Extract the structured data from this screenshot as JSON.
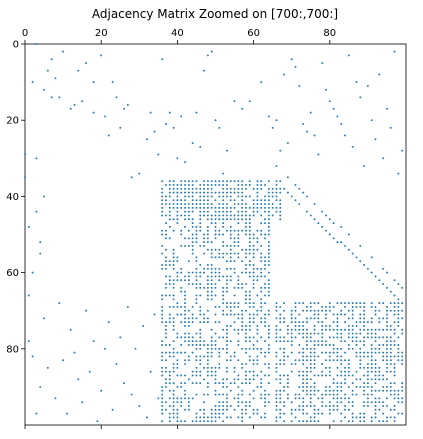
{
  "chart_data": {
    "type": "scatter",
    "title": "Adjacency Matrix Zoomed on [700:,700:]",
    "xlabel": "",
    "ylabel": "",
    "xlim": [
      0,
      100
    ],
    "ylim": [
      0,
      100
    ],
    "y_inverted": true,
    "x_axis_position": "top",
    "grid": false,
    "legend": "none",
    "marker_color": "#1f77b4",
    "x_ticks": [
      0,
      20,
      40,
      60,
      80
    ],
    "y_ticks": [
      0,
      20,
      40,
      60,
      80
    ],
    "x_tick_labels": [
      "0",
      "20",
      "40",
      "60",
      "80"
    ],
    "y_tick_labels": [
      "0",
      "20",
      "40",
      "60",
      "80"
    ],
    "points": [
      [
        2,
        10
      ],
      [
        3,
        0
      ],
      [
        5,
        12
      ],
      [
        6,
        7
      ],
      [
        7,
        4
      ],
      [
        7,
        14
      ],
      [
        8,
        9
      ],
      [
        9,
        14
      ],
      [
        10,
        2
      ],
      [
        12,
        17
      ],
      [
        13,
        16
      ],
      [
        14,
        7
      ],
      [
        15,
        15
      ],
      [
        16,
        5
      ],
      [
        18,
        18
      ],
      [
        18,
        10
      ],
      [
        20,
        3
      ],
      [
        21,
        19
      ],
      [
        22,
        24
      ],
      [
        23,
        10
      ],
      [
        24,
        14
      ],
      [
        25,
        22
      ],
      [
        26,
        17
      ],
      [
        27,
        16
      ],
      [
        28,
        35
      ],
      [
        30,
        34
      ],
      [
        32,
        25
      ],
      [
        33,
        18
      ],
      [
        34,
        23
      ],
      [
        35,
        29
      ],
      [
        36,
        4
      ],
      [
        37,
        21
      ],
      [
        38,
        18
      ],
      [
        39,
        22
      ],
      [
        40,
        30
      ],
      [
        41,
        19
      ],
      [
        42,
        31
      ],
      [
        44,
        26
      ],
      [
        45,
        18
      ],
      [
        46,
        27
      ],
      [
        47,
        7
      ],
      [
        48,
        3
      ],
      [
        49,
        2
      ],
      [
        50,
        20
      ],
      [
        51,
        22
      ],
      [
        52,
        34
      ],
      [
        53,
        28
      ],
      [
        55,
        15
      ],
      [
        57,
        17
      ],
      [
        59,
        15
      ],
      [
        62,
        10
      ],
      [
        64,
        19
      ],
      [
        65,
        22
      ],
      [
        66,
        20
      ],
      [
        67,
        28
      ],
      [
        68,
        8
      ],
      [
        69,
        26
      ],
      [
        70,
        4
      ],
      [
        71,
        6
      ],
      [
        72,
        11
      ],
      [
        73,
        21
      ],
      [
        74,
        23
      ],
      [
        75,
        18
      ],
      [
        76,
        24
      ],
      [
        77,
        29
      ],
      [
        78,
        5
      ],
      [
        79,
        12
      ],
      [
        80,
        15
      ],
      [
        81,
        17
      ],
      [
        82,
        19
      ],
      [
        83,
        21
      ],
      [
        84,
        24
      ],
      [
        85,
        3
      ],
      [
        86,
        27
      ],
      [
        87,
        10
      ],
      [
        88,
        14
      ],
      [
        89,
        32
      ],
      [
        90,
        11
      ],
      [
        91,
        20
      ],
      [
        92,
        25
      ],
      [
        93,
        8
      ],
      [
        94,
        30
      ],
      [
        95,
        17
      ],
      [
        96,
        22
      ],
      [
        97,
        2
      ],
      [
        98,
        34
      ],
      [
        99,
        28
      ],
      [
        1,
        78
      ],
      [
        2,
        82
      ],
      [
        3,
        97
      ],
      [
        4,
        90
      ],
      [
        5,
        72
      ],
      [
        6,
        85
      ],
      [
        8,
        93
      ],
      [
        9,
        68
      ],
      [
        10,
        83
      ],
      [
        11,
        97
      ],
      [
        12,
        75
      ],
      [
        13,
        81
      ],
      [
        14,
        88
      ],
      [
        15,
        94
      ],
      [
        16,
        70
      ],
      [
        17,
        86
      ],
      [
        18,
        78
      ],
      [
        19,
        99
      ],
      [
        20,
        91
      ],
      [
        21,
        80
      ],
      [
        22,
        73
      ],
      [
        23,
        96
      ],
      [
        24,
        84
      ],
      [
        25,
        77
      ],
      [
        26,
        89
      ],
      [
        27,
        69
      ],
      [
        28,
        92
      ],
      [
        29,
        80
      ],
      [
        30,
        95
      ],
      [
        31,
        74
      ],
      [
        32,
        98
      ],
      [
        33,
        86
      ],
      [
        34,
        71
      ],
      [
        35,
        93
      ],
      [
        0,
        29
      ],
      [
        0,
        35
      ],
      [
        1,
        48
      ],
      [
        2,
        60
      ],
      [
        3,
        44
      ],
      [
        4,
        55
      ],
      [
        1,
        66
      ],
      [
        3,
        30
      ],
      [
        4,
        52
      ],
      [
        5,
        40
      ]
    ],
    "dense_blocks": [
      {
        "x": [
          36,
          64
        ],
        "y": [
          36,
          99
        ],
        "density": 0.55
      },
      {
        "x": [
          36,
          67
        ],
        "y": [
          36,
          46
        ],
        "density": 0.6
      },
      {
        "x": [
          66,
          99
        ],
        "y": [
          68,
          99
        ],
        "density": 0.6
      }
    ],
    "diagonal_bands": [
      {
        "x": [
          66,
          99
        ],
        "y": [
          36,
          68
        ],
        "offset": 0,
        "width": 1,
        "density": 0.9
      },
      {
        "x": [
          66,
          99
        ],
        "y": [
          36,
          68
        ],
        "offset": -4,
        "width": 1,
        "density": 0.7
      }
    ]
  }
}
